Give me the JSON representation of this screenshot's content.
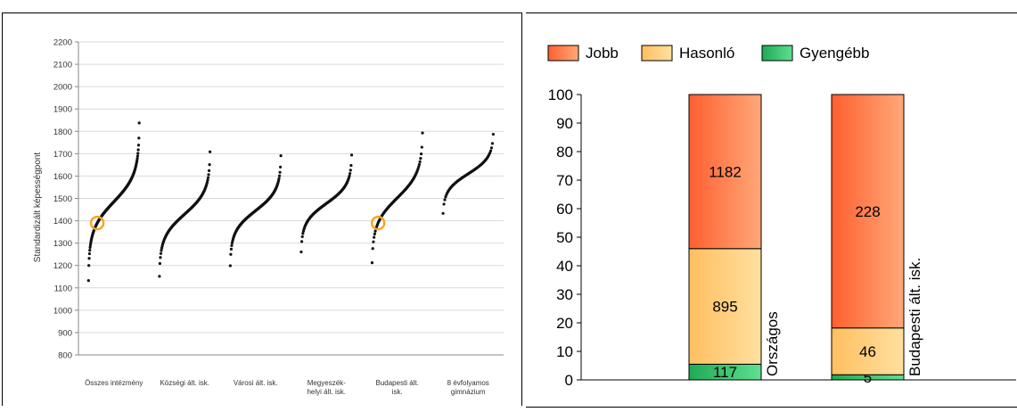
{
  "chart_data": [
    {
      "type": "scatter",
      "ylabel": "Standardizált képességpont",
      "xlabel": "",
      "ylim": [
        800,
        2200
      ],
      "yticks": [
        800,
        900,
        1000,
        1100,
        1200,
        1300,
        1400,
        1500,
        1600,
        1700,
        1800,
        1900,
        2000,
        2100,
        2200
      ],
      "grid": true,
      "categories": [
        {
          "label": [
            "Összes intézmény"
          ],
          "min": 1130,
          "max": 1840,
          "n": 160
        },
        {
          "label": [
            "Községi ált. isk."
          ],
          "min": 1130,
          "max": 1730,
          "n": 110
        },
        {
          "label": [
            "Városi ált. isk."
          ],
          "min": 1180,
          "max": 1710,
          "n": 110
        },
        {
          "label": [
            "Megyeszék-",
            "helyi ált. isk."
          ],
          "min": 1235,
          "max": 1720,
          "n": 90
        },
        {
          "label": [
            "Budapesti ált.",
            "isk."
          ],
          "min": 1170,
          "max": 1835,
          "n": 80
        },
        {
          "label": [
            "8 évfolyamos",
            "gimnázium"
          ],
          "min": 1395,
          "max": 1825,
          "n": 60
        }
      ],
      "highlights": [
        {
          "category": 0,
          "value": 1390,
          "color": "#f5a623"
        },
        {
          "category": 4,
          "value": 1390,
          "color": "#f5a623"
        }
      ]
    },
    {
      "type": "bar",
      "stacked": true,
      "ylim": [
        0,
        100
      ],
      "yticks": [
        0,
        10,
        20,
        30,
        40,
        50,
        60,
        70,
        80,
        90,
        100
      ],
      "legend_position": "top-left",
      "categories": [
        "Országos",
        "Budapesti ált. isk."
      ],
      "series": [
        {
          "name": "Gyengébb",
          "color_light": "#5fe08e",
          "color_dark": "#1faa55",
          "values": [
            5.5,
            1.8
          ],
          "labels": [
            "117",
            "5"
          ]
        },
        {
          "name": "Hasonló",
          "color_light": "#ffe0a0",
          "color_dark": "#ffbf60",
          "values": [
            40.5,
            16.4
          ],
          "labels": [
            "895",
            "46"
          ]
        },
        {
          "name": "Jobb",
          "color_light": "#ffa878",
          "color_dark": "#ff5f30",
          "values": [
            54.0,
            81.8
          ],
          "labels": [
            "1182",
            "228"
          ]
        }
      ]
    }
  ]
}
